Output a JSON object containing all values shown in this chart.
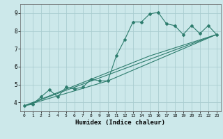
{
  "title": "",
  "xlabel": "Humidex (Indice chaleur)",
  "background_color": "#cce8ea",
  "grid_color": "#aacdd0",
  "line_color": "#2e7d6e",
  "xlim": [
    -0.5,
    23.5
  ],
  "ylim": [
    3.5,
    9.5
  ],
  "yticks": [
    4,
    5,
    6,
    7,
    8,
    9
  ],
  "xticks": [
    0,
    1,
    2,
    3,
    4,
    5,
    6,
    7,
    8,
    9,
    10,
    11,
    12,
    13,
    14,
    15,
    16,
    17,
    18,
    19,
    20,
    21,
    22,
    23
  ],
  "series1_x": [
    0,
    1,
    2,
    3,
    4,
    5,
    6,
    7,
    8,
    9,
    10,
    11,
    12,
    13,
    14,
    15,
    16,
    17,
    18,
    19,
    20,
    21,
    22,
    23
  ],
  "series1_y": [
    3.8,
    3.9,
    4.3,
    4.7,
    4.3,
    4.85,
    4.75,
    4.85,
    5.3,
    5.2,
    5.2,
    6.6,
    7.5,
    8.5,
    8.5,
    8.95,
    9.05,
    8.4,
    8.3,
    7.8,
    8.3,
    7.85,
    8.3,
    7.8
  ],
  "series2_x": [
    0,
    23
  ],
  "series2_y": [
    3.8,
    7.8
  ],
  "series3_x": [
    0,
    10,
    23
  ],
  "series3_y": [
    3.8,
    5.2,
    7.8
  ],
  "series4_x": [
    0,
    15,
    23
  ],
  "series4_y": [
    3.8,
    6.6,
    7.8
  ]
}
